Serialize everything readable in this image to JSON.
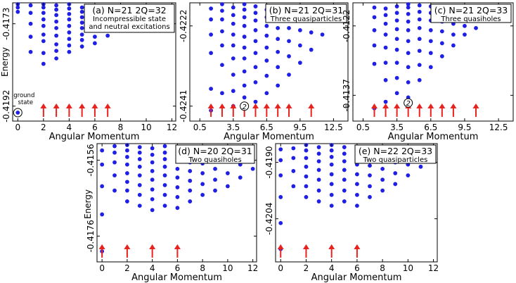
{
  "colors": {
    "dot": "#1f1fe6",
    "arrow": "#e8221f",
    "axis": "#000000"
  },
  "chart_data": [
    {
      "type": "scatter",
      "title": "(a) N=21 2Q=32",
      "subtitle": [
        "Incompressible state",
        "and neutral excitations"
      ],
      "xlabel": "Angular Momentum",
      "ylabel": "Energy",
      "yticks": [
        "-0.4173",
        "-0.4192"
      ],
      "xticks": [
        "0",
        "2",
        "4",
        "6",
        "8",
        "10",
        "12"
      ],
      "annotation": [
        "ground",
        "state"
      ],
      "arrows_at": [
        2,
        3,
        4,
        5,
        6,
        7
      ],
      "columns": [
        {
          "x": 0,
          "e": [
            0.0,
            0.93,
            0.97,
            1.0
          ]
        },
        {
          "x": 1,
          "e": [
            0.56,
            0.7,
            0.82,
            0.92,
            0.99
          ]
        },
        {
          "x": 2,
          "e": [
            0.45,
            0.55,
            0.66,
            0.72,
            0.8,
            0.86,
            0.92,
            0.97,
            1.0
          ]
        },
        {
          "x": 3,
          "e": [
            0.5,
            0.57,
            0.63,
            0.71,
            0.78,
            0.84,
            0.9,
            0.95,
            0.99
          ]
        },
        {
          "x": 4,
          "e": [
            0.56,
            0.62,
            0.68,
            0.74,
            0.8,
            0.86,
            0.91,
            0.96,
            1.0
          ]
        },
        {
          "x": 5,
          "e": [
            0.61,
            0.67,
            0.72,
            0.78,
            0.83,
            0.88,
            0.93,
            0.97
          ]
        },
        {
          "x": 6,
          "e": [
            0.64,
            0.7,
            0.76,
            0.82,
            0.87,
            0.92,
            0.97
          ]
        },
        {
          "x": 7,
          "e": [
            0.71,
            0.77,
            0.83,
            0.88,
            0.93,
            0.98
          ]
        },
        {
          "x": 8,
          "e": [
            0.77,
            0.83,
            0.89,
            0.95
          ]
        },
        {
          "x": 9,
          "e": [
            0.82,
            0.89,
            0.95
          ]
        },
        {
          "x": 10,
          "e": [
            0.88,
            0.95
          ]
        },
        {
          "x": 11,
          "e": [
            0.94
          ]
        }
      ]
    },
    {
      "type": "scatter",
      "title": "(b) N=21 2Q=31",
      "subtitle": [
        "Three quasiparticles"
      ],
      "xlabel": "Angular Momentum",
      "ylabel": "",
      "yticks": [
        "-0.4222",
        "-0.4241"
      ],
      "xticks": [
        "0.5",
        "3.5",
        "6.5",
        "9.5",
        "12.5"
      ],
      "annotation": [
        "2"
      ],
      "arrows_at": [
        1.5,
        2.5,
        3.5,
        4.5,
        5.5,
        6.5,
        7.5,
        8.5,
        10.5
      ],
      "columns": [
        {
          "x": 1.5,
          "e": [
            0.02,
            0.22,
            0.55,
            0.72,
            0.86,
            0.96
          ]
        },
        {
          "x": 2.5,
          "e": [
            0.18,
            0.44,
            0.62,
            0.75,
            0.86,
            0.94,
            1.0
          ]
        },
        {
          "x": 3.5,
          "e": [
            0.06,
            0.2,
            0.35,
            0.5,
            0.62,
            0.72,
            0.82,
            0.9,
            0.97
          ]
        },
        {
          "x": 4.5,
          "e": [
            0.14,
            0.25,
            0.38,
            0.5,
            0.6,
            0.7,
            0.8,
            0.88,
            0.95,
            1.0
          ]
        },
        {
          "x": 5.5,
          "e": [
            0.1,
            0.28,
            0.42,
            0.55,
            0.66,
            0.76,
            0.85,
            0.92,
            0.98
          ]
        },
        {
          "x": 6.5,
          "e": [
            0.18,
            0.34,
            0.48,
            0.6,
            0.71,
            0.8,
            0.88,
            0.95
          ]
        },
        {
          "x": 7.5,
          "e": [
            0.25,
            0.42,
            0.56,
            0.68,
            0.78,
            0.87,
            0.94
          ]
        },
        {
          "x": 8.5,
          "e": [
            0.35,
            0.52,
            0.66,
            0.78,
            0.88,
            0.96
          ]
        },
        {
          "x": 9.5,
          "e": [
            0.46,
            0.62,
            0.76,
            0.88
          ]
        },
        {
          "x": 10.5,
          "e": [
            0.58,
            0.74,
            0.88,
            0.98
          ]
        },
        {
          "x": 11.5,
          "e": [
            0.72,
            0.86
          ]
        },
        {
          "x": 12.5,
          "e": [
            0.86
          ]
        }
      ]
    },
    {
      "type": "scatter",
      "title": "(c) N=21 2Q=33",
      "subtitle": [
        "Three quasiholes"
      ],
      "xlabel": "Angular Momentum",
      "ylabel": "",
      "yticks": [
        "-0.4122",
        "-0.4137"
      ],
      "xticks": [
        "0.5",
        "3.5",
        "6.5",
        "9.5",
        "12.5"
      ],
      "annotation": [
        "2"
      ],
      "arrows_at": [
        1.5,
        2.5,
        3.5,
        4.5,
        5.5,
        6.5,
        7.5,
        8.5,
        10.5
      ],
      "columns": [
        {
          "x": 1.5,
          "e": [
            0.04,
            0.45,
            0.62,
            0.76,
            0.88,
            0.97
          ]
        },
        {
          "x": 2.5,
          "e": [
            0.1,
            0.3,
            0.46,
            0.6,
            0.72,
            0.82,
            0.9,
            0.96
          ]
        },
        {
          "x": 3.5,
          "e": [
            0.18,
            0.32,
            0.46,
            0.58,
            0.68,
            0.77,
            0.85,
            0.92,
            0.98
          ]
        },
        {
          "x": 4.5,
          "e": [
            0.14,
            0.28,
            0.42,
            0.55,
            0.66,
            0.76,
            0.84,
            0.91,
            0.97,
            1.0
          ]
        },
        {
          "x": 5.5,
          "e": [
            0.3,
            0.44,
            0.57,
            0.68,
            0.78,
            0.86,
            0.93,
            0.99
          ]
        },
        {
          "x": 6.5,
          "e": [
            0.42,
            0.55,
            0.66,
            0.76,
            0.85,
            0.92,
            0.98
          ]
        },
        {
          "x": 7.5,
          "e": [
            0.52,
            0.64,
            0.75,
            0.84,
            0.92
          ]
        },
        {
          "x": 8.5,
          "e": [
            0.62,
            0.72,
            0.82,
            0.9
          ]
        },
        {
          "x": 9.5,
          "e": [
            0.72,
            0.8,
            0.88
          ]
        },
        {
          "x": 10.5,
          "e": [
            0.78,
            0.86
          ]
        },
        {
          "x": 11.5,
          "e": [
            0.86
          ]
        }
      ]
    },
    {
      "type": "scatter",
      "title": "(d) N=20 2Q=31",
      "subtitle": [
        "Two quasiholes"
      ],
      "xlabel": "Angular Momentum",
      "ylabel": "Energy",
      "yticks": [
        "-0.4156",
        "-0.4176"
      ],
      "xticks": [
        "0",
        "2",
        "4",
        "6",
        "8",
        "10",
        "12"
      ],
      "annotation": [],
      "arrows_at": [
        0,
        2,
        4,
        6
      ],
      "columns": [
        {
          "x": 0,
          "e": [
            0.02,
            0.36,
            0.62,
            0.82,
            0.95
          ]
        },
        {
          "x": 1,
          "e": [
            0.58,
            0.72,
            0.84,
            0.93,
            0.99
          ]
        },
        {
          "x": 2,
          "e": [
            0.48,
            0.58,
            0.66,
            0.74,
            0.82,
            0.89,
            0.95,
            1.0
          ]
        },
        {
          "x": 3,
          "e": [
            0.44,
            0.54,
            0.63,
            0.72,
            0.8,
            0.87,
            0.93,
            0.98
          ]
        },
        {
          "x": 4,
          "e": [
            0.4,
            0.5,
            0.59,
            0.68,
            0.76,
            0.84,
            0.91,
            0.97
          ]
        },
        {
          "x": 5,
          "e": [
            0.44,
            0.54,
            0.63,
            0.72,
            0.8,
            0.87,
            0.93,
            0.99
          ]
        },
        {
          "x": 6,
          "e": [
            0.42,
            0.52,
            0.61,
            0.7,
            0.78,
            0.85,
            0.92,
            0.98
          ]
        },
        {
          "x": 7,
          "e": [
            0.48,
            0.58,
            0.67,
            0.76,
            0.84,
            0.91
          ]
        },
        {
          "x": 8,
          "e": [
            0.54,
            0.64,
            0.74,
            0.83,
            0.91
          ]
        },
        {
          "x": 9,
          "e": [
            0.58,
            0.68,
            0.78,
            0.87
          ]
        },
        {
          "x": 10,
          "e": [
            0.62,
            0.74,
            0.85
          ]
        },
        {
          "x": 11,
          "e": [
            0.7,
            0.82
          ]
        },
        {
          "x": 12,
          "e": [
            0.78
          ]
        }
      ]
    },
    {
      "type": "scatter",
      "title": "(e) N=22 2Q=33",
      "subtitle": [
        "Two quasiparticles"
      ],
      "xlabel": "Angular Momentum",
      "ylabel": "",
      "yticks": [
        "-0.4190",
        "-0.4204"
      ],
      "xticks": [
        "0",
        "2",
        "4",
        "6",
        "8",
        "10",
        "12"
      ],
      "annotation": [],
      "arrows_at": [
        0,
        2,
        4,
        6
      ],
      "columns": [
        {
          "x": 0,
          "e": [
            0.04,
            0.28,
            0.52,
            0.72,
            0.86,
            0.96
          ]
        },
        {
          "x": 1,
          "e": [
            0.62,
            0.76,
            0.88,
            0.97
          ]
        },
        {
          "x": 2,
          "e": [
            0.52,
            0.62,
            0.71,
            0.8,
            0.88,
            0.95,
            1.0
          ]
        },
        {
          "x": 3,
          "e": [
            0.48,
            0.58,
            0.68,
            0.77,
            0.85,
            0.92,
            0.98
          ]
        },
        {
          "x": 4,
          "e": [
            0.44,
            0.54,
            0.64,
            0.73,
            0.82,
            0.89,
            0.95,
            1.0
          ]
        },
        {
          "x": 5,
          "e": [
            0.48,
            0.58,
            0.68,
            0.77,
            0.85,
            0.92,
            0.98
          ]
        },
        {
          "x": 6,
          "e": [
            0.44,
            0.54,
            0.64,
            0.73,
            0.82,
            0.9,
            0.97
          ]
        },
        {
          "x": 7,
          "e": [
            0.52,
            0.62,
            0.72,
            0.81,
            0.89,
            0.96
          ]
        },
        {
          "x": 8,
          "e": [
            0.58,
            0.68,
            0.78,
            0.87
          ]
        },
        {
          "x": 9,
          "e": [
            0.64,
            0.74,
            0.84
          ]
        },
        {
          "x": 10,
          "e": [
            0.72,
            0.82
          ]
        },
        {
          "x": 11,
          "e": [
            0.8
          ]
        }
      ]
    }
  ]
}
